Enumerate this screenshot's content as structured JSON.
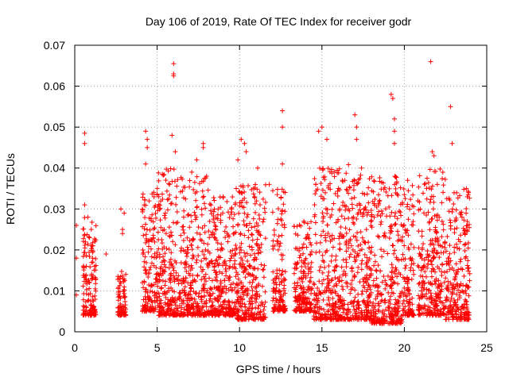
{
  "chart_data": {
    "type": "scatter",
    "title": "Day 106 of 2019, Rate Of TEC Index for receiver godr",
    "xlabel": "GPS time / hours",
    "ylabel": "ROTI / TECUs",
    "xlim": [
      0,
      25
    ],
    "ylim": [
      0,
      0.07
    ],
    "xticks": [
      0,
      5,
      10,
      15,
      20,
      25
    ],
    "xtick_labels": [
      "0",
      "5",
      "10",
      "15",
      "20",
      "25"
    ],
    "yticks": [
      0,
      0.01,
      0.02,
      0.03,
      0.04,
      0.05,
      0.06,
      0.07
    ],
    "ytick_labels": [
      "0",
      "0.01",
      "0.02",
      "0.03",
      "0.04",
      "0.05",
      "0.06",
      "0.07"
    ],
    "grid": true,
    "marker": "+",
    "color": "#ff0000",
    "series": [
      {
        "name": "ROTI",
        "points": [
          [
            0.1,
            0.018
          ],
          [
            0.1,
            0.026
          ],
          [
            0.1,
            0.009
          ],
          [
            0.6,
            0.0485
          ],
          [
            0.6,
            0.046
          ],
          [
            0.6,
            0.031
          ],
          [
            0.7,
            0.016
          ],
          [
            0.8,
            0.028
          ],
          [
            0.9,
            0.023
          ],
          [
            0.9,
            0.012
          ],
          [
            1.0,
            0.025
          ],
          [
            1.1,
            0.021
          ],
          [
            1.2,
            0.016
          ],
          [
            1.9,
            0.019
          ],
          [
            2.8,
            0.03
          ],
          [
            2.9,
            0.025
          ],
          [
            2.9,
            0.024
          ],
          [
            3.0,
            0.029
          ],
          [
            4.3,
            0.049
          ],
          [
            4.4,
            0.047
          ],
          [
            4.4,
            0.045
          ],
          [
            4.3,
            0.041
          ],
          [
            5.1,
            0.033
          ],
          [
            5.5,
            0.029
          ],
          [
            5.9,
            0.048
          ],
          [
            6.0,
            0.0655
          ],
          [
            6.0,
            0.063
          ],
          [
            6.0,
            0.0625
          ],
          [
            6.1,
            0.044
          ],
          [
            7.1,
            0.039
          ],
          [
            7.4,
            0.042
          ],
          [
            7.8,
            0.046
          ],
          [
            7.8,
            0.045
          ],
          [
            8.0,
            0.038
          ],
          [
            8.7,
            0.03
          ],
          [
            9.0,
            0.033
          ],
          [
            9.5,
            0.03
          ],
          [
            9.8,
            0.035
          ],
          [
            9.9,
            0.042
          ],
          [
            10.1,
            0.047
          ],
          [
            10.3,
            0.046
          ],
          [
            10.4,
            0.044
          ],
          [
            11.1,
            0.04
          ],
          [
            11.8,
            0.036
          ],
          [
            12.6,
            0.054
          ],
          [
            12.6,
            0.05
          ],
          [
            12.6,
            0.041
          ],
          [
            13.9,
            0.027
          ],
          [
            14.8,
            0.049
          ],
          [
            15.0,
            0.05
          ],
          [
            15.3,
            0.047
          ],
          [
            16.0,
            0.035
          ],
          [
            17.0,
            0.053
          ],
          [
            17.1,
            0.05
          ],
          [
            17.1,
            0.047
          ],
          [
            17.4,
            0.04
          ],
          [
            19.2,
            0.058
          ],
          [
            19.3,
            0.057
          ],
          [
            19.4,
            0.052
          ],
          [
            19.4,
            0.049
          ],
          [
            19.4,
            0.046
          ],
          [
            20.2,
            0.037
          ],
          [
            21.6,
            0.066
          ],
          [
            21.7,
            0.044
          ],
          [
            21.8,
            0.043
          ],
          [
            22.0,
            0.036
          ],
          [
            22.8,
            0.055
          ],
          [
            22.9,
            0.046
          ],
          [
            23.5,
            0.028
          ],
          [
            23.9,
            0.034
          ]
        ],
        "dense_bands": [
          [
            0.5,
            1.3,
            0.004,
            0.028
          ],
          [
            2.6,
            3.1,
            0.004,
            0.015
          ],
          [
            4.1,
            5.0,
            0.005,
            0.035
          ],
          [
            5.0,
            6.6,
            0.004,
            0.04
          ],
          [
            6.6,
            8.2,
            0.004,
            0.038
          ],
          [
            8.2,
            9.8,
            0.004,
            0.033
          ],
          [
            9.8,
            11.6,
            0.003,
            0.037
          ],
          [
            12.0,
            12.8,
            0.005,
            0.035
          ],
          [
            13.3,
            14.4,
            0.005,
            0.027
          ],
          [
            14.5,
            16.5,
            0.003,
            0.04
          ],
          [
            16.5,
            18.0,
            0.003,
            0.041
          ],
          [
            18.0,
            19.9,
            0.002,
            0.038
          ],
          [
            19.9,
            20.6,
            0.004,
            0.036
          ],
          [
            20.8,
            22.5,
            0.004,
            0.04
          ],
          [
            22.5,
            24.0,
            0.003,
            0.035
          ]
        ]
      }
    ]
  }
}
